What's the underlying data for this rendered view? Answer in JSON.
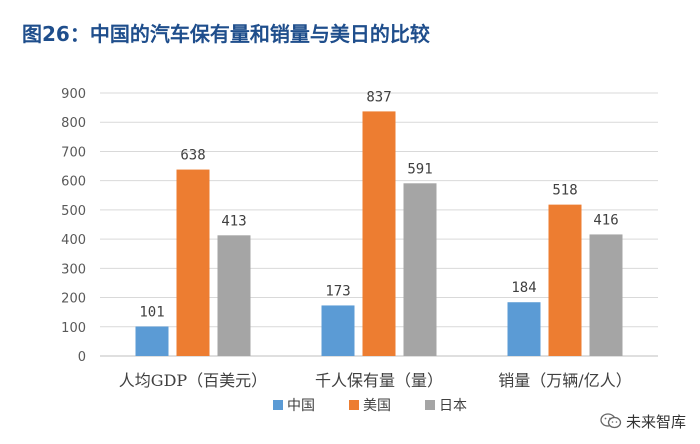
{
  "title": "图26：中国的汽车保有量和销量与美日的比较",
  "watermark": "未来智库",
  "chart_data": {
    "type": "bar",
    "categories": [
      "人均GDP（百美元）",
      "千人保有量（量）",
      "销量（万辆/亿人）"
    ],
    "series": [
      {
        "name": "中国",
        "color": "#5b9bd5",
        "values": [
          101,
          173,
          184
        ]
      },
      {
        "name": "美国",
        "color": "#ed7d31",
        "values": [
          638,
          837,
          518
        ]
      },
      {
        "name": "日本",
        "color": "#a5a5a5",
        "values": [
          413,
          591,
          416
        ]
      }
    ],
    "ylim": [
      0,
      900
    ],
    "yticks": [
      0,
      100,
      200,
      300,
      400,
      500,
      600,
      700,
      800,
      900
    ],
    "grid": true,
    "legend_position": "bottom"
  }
}
